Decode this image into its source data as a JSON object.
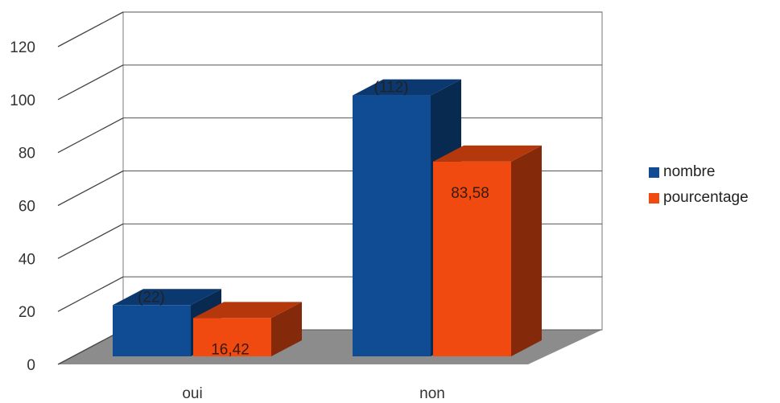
{
  "chart_data": {
    "type": "bar",
    "categories": [
      "oui",
      "non"
    ],
    "series": [
      {
        "name": "nombre",
        "values": [
          22,
          112
        ],
        "labels": [
          "(22)",
          "(112)"
        ],
        "color": "#0f4c94"
      },
      {
        "name": "pourcentage",
        "values": [
          16.42,
          83.58
        ],
        "labels": [
          "16,42",
          "83,58"
        ],
        "color": "#f04a10"
      }
    ],
    "ylim": [
      0,
      120
    ],
    "yticks": [
      0,
      20,
      40,
      60,
      80,
      100,
      120
    ],
    "grid": true,
    "three_d": true,
    "legend": "right"
  }
}
